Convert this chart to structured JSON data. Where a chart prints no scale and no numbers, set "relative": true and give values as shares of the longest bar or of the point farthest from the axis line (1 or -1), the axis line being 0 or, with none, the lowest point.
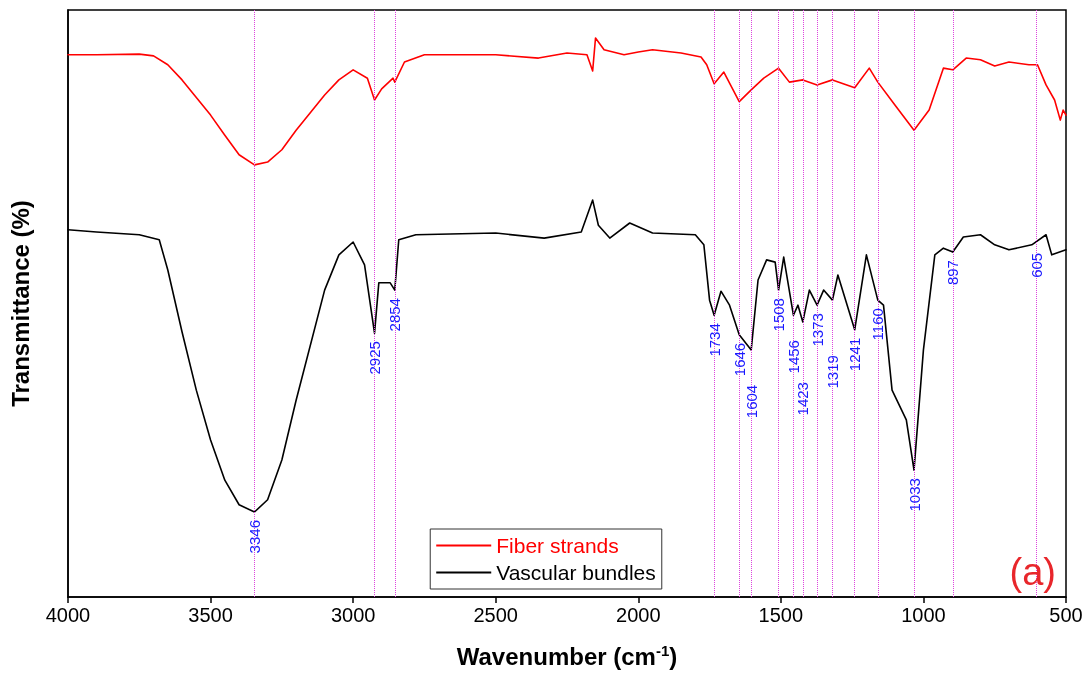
{
  "chart_data": {
    "type": "line",
    "relative": true,
    "xlabel": "Wavenumber (cm$^{-1}$)",
    "ylabel": "Transmittance (%)",
    "xlim": [
      4000,
      500
    ],
    "xticks": [
      4000,
      3500,
      3000,
      2500,
      2000,
      1500,
      1000,
      500
    ],
    "grid": false,
    "legend": "bottom",
    "marker": "none",
    "line_style": "solid",
    "annotations": [
      "(a)"
    ],
    "series": [
      {
        "name": "Fiber strands",
        "color": "#ff0000",
        "x": [
          4000,
          3900,
          3750,
          3700,
          3650,
          3600,
          3500,
          3450,
          3400,
          3346,
          3300,
          3250,
          3200,
          3100,
          3050,
          3000,
          2950,
          2925,
          2900,
          2860,
          2854,
          2820,
          2750,
          2500,
          2350,
          2250,
          2180,
          2160,
          2150,
          2120,
          2050,
          2000,
          1950,
          1850,
          1780,
          1760,
          1734,
          1700,
          1646,
          1604,
          1560,
          1508,
          1470,
          1423,
          1373,
          1319,
          1241,
          1190,
          1160,
          1100,
          1033,
          980,
          930,
          897,
          850,
          800,
          750,
          700,
          630,
          600,
          570,
          540,
          520,
          510,
          500
        ],
        "values": [
          0.97,
          0.97,
          0.971,
          0.968,
          0.952,
          0.925,
          0.862,
          0.826,
          0.791,
          0.773,
          0.778,
          0.8,
          0.835,
          0.898,
          0.925,
          0.943,
          0.928,
          0.889,
          0.909,
          0.928,
          0.921,
          0.957,
          0.97,
          0.97,
          0.964,
          0.973,
          0.97,
          0.941,
          1.0,
          0.979,
          0.97,
          0.975,
          0.979,
          0.973,
          0.966,
          0.952,
          0.918,
          0.939,
          0.886,
          0.907,
          0.928,
          0.946,
          0.921,
          0.925,
          0.916,
          0.925,
          0.911,
          0.946,
          0.921,
          0.88,
          0.835,
          0.871,
          0.946,
          0.943,
          0.964,
          0.961,
          0.95,
          0.957,
          0.952,
          0.952,
          0.916,
          0.889,
          0.853,
          0.871,
          0.862
        ]
      },
      {
        "name": "Vascular bundles",
        "color": "#000000",
        "x": [
          4000,
          3900,
          3750,
          3680,
          3650,
          3600,
          3550,
          3500,
          3450,
          3400,
          3346,
          3300,
          3250,
          3200,
          3100,
          3050,
          3000,
          2960,
          2925,
          2910,
          2870,
          2854,
          2840,
          2780,
          2500,
          2330,
          2200,
          2160,
          2140,
          2100,
          2030,
          1950,
          1800,
          1770,
          1750,
          1734,
          1710,
          1680,
          1646,
          1604,
          1580,
          1550,
          1520,
          1508,
          1490,
          1456,
          1440,
          1423,
          1400,
          1373,
          1350,
          1319,
          1300,
          1241,
          1200,
          1160,
          1140,
          1110,
          1060,
          1033,
          1000,
          960,
          930,
          897,
          860,
          800,
          750,
          700,
          620,
          570,
          550,
          500
        ],
        "values": [
          0.657,
          0.653,
          0.648,
          0.639,
          0.585,
          0.474,
          0.37,
          0.281,
          0.209,
          0.165,
          0.152,
          0.174,
          0.245,
          0.352,
          0.549,
          0.612,
          0.635,
          0.594,
          0.472,
          0.562,
          0.562,
          0.549,
          0.639,
          0.648,
          0.651,
          0.642,
          0.653,
          0.71,
          0.665,
          0.642,
          0.669,
          0.651,
          0.648,
          0.63,
          0.531,
          0.504,
          0.547,
          0.522,
          0.469,
          0.442,
          0.567,
          0.603,
          0.599,
          0.549,
          0.608,
          0.504,
          0.522,
          0.492,
          0.549,
          0.522,
          0.549,
          0.531,
          0.576,
          0.478,
          0.612,
          0.531,
          0.522,
          0.37,
          0.317,
          0.227,
          0.442,
          0.612,
          0.624,
          0.617,
          0.644,
          0.648,
          0.63,
          0.621,
          0.63,
          0.648,
          0.612,
          0.621
        ]
      }
    ],
    "ref_lines": [
      {
        "axis": "x",
        "value": 3346,
        "label": "3346",
        "color": "#dd44dd",
        "line_style": "dotted"
      },
      {
        "axis": "x",
        "value": 2925,
        "label": "2925",
        "color": "#dd44dd",
        "line_style": "dotted"
      },
      {
        "axis": "x",
        "value": 2854,
        "label": "2854",
        "color": "#dd44dd",
        "line_style": "dotted"
      },
      {
        "axis": "x",
        "value": 1734,
        "label": "1734",
        "color": "#dd44dd",
        "line_style": "dotted"
      },
      {
        "axis": "x",
        "value": 1646,
        "label": "1646",
        "color": "#dd44dd",
        "line_style": "dotted"
      },
      {
        "axis": "x",
        "value": 1604,
        "label": "1604",
        "color": "#dd44dd",
        "line_style": "dotted"
      },
      {
        "axis": "x",
        "value": 1508,
        "label": "1508",
        "color": "#dd44dd",
        "line_style": "dotted"
      },
      {
        "axis": "x",
        "value": 1456,
        "label": "1456",
        "color": "#dd44dd",
        "line_style": "dotted"
      },
      {
        "axis": "x",
        "value": 1423,
        "label": "1423",
        "color": "#dd44dd",
        "line_style": "dotted"
      },
      {
        "axis": "x",
        "value": 1373,
        "label": "1373",
        "color": "#dd44dd",
        "line_style": "dotted"
      },
      {
        "axis": "x",
        "value": 1319,
        "label": "1319",
        "color": "#dd44dd",
        "line_style": "dotted"
      },
      {
        "axis": "x",
        "value": 1241,
        "label": "1241",
        "color": "#dd44dd",
        "line_style": "dotted"
      },
      {
        "axis": "x",
        "value": 1160,
        "label": "1160",
        "color": "#dd44dd",
        "line_style": "dotted"
      },
      {
        "axis": "x",
        "value": 1033,
        "label": "1033",
        "color": "#dd44dd",
        "line_style": "dotted"
      },
      {
        "axis": "x",
        "value": 897,
        "label": "897",
        "color": "#dd44dd",
        "line_style": "dotted"
      },
      {
        "axis": "x",
        "value": 605,
        "label": "605",
        "color": "#dd44dd",
        "line_style": "dotted"
      }
    ]
  }
}
